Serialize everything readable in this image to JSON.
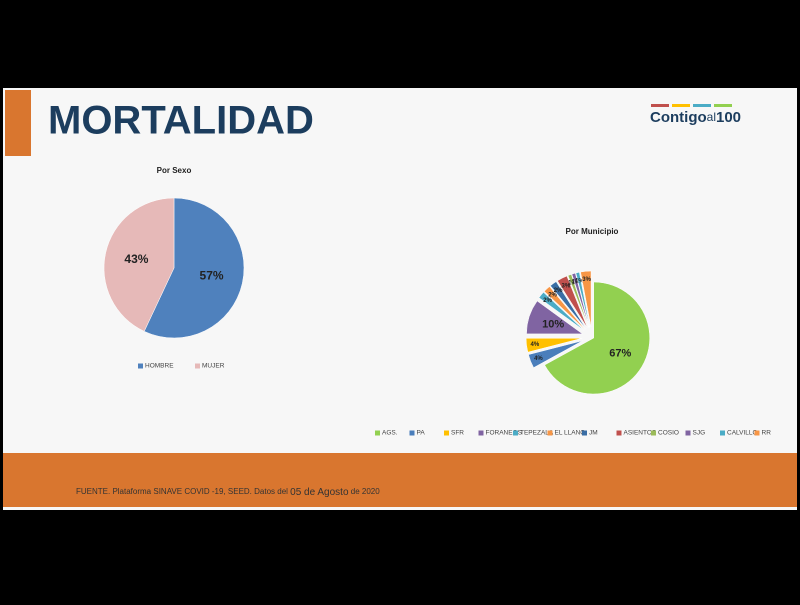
{
  "header": {
    "title": "MORTALIDAD",
    "logo": [
      "Contigo",
      "al",
      "100"
    ]
  },
  "footer": [
    "FUENTE. Plataforma SINAVE COVID -19, SEED. Datos del ",
    "05 de Agosto",
    " de 2020"
  ],
  "chart_data": [
    {
      "type": "pie",
      "title": "Por Sexo",
      "categories": [
        "HOMBRE",
        "MUJER"
      ],
      "values": [
        57,
        43
      ],
      "value_labels": [
        "57%",
        "43%"
      ],
      "colors": [
        "#4f81bd",
        "#e6b9b8"
      ]
    },
    {
      "type": "pie",
      "title": "Por Municipio",
      "exploded": true,
      "categories": [
        "AGS.",
        "PA",
        "SFR",
        "FORANEOS",
        "TEPEZALA",
        "EL LLANO",
        "JM",
        "ASIENTOS",
        "COSIO",
        "SJG",
        "CALVILLO",
        "RR"
      ],
      "values": [
        67,
        4,
        4,
        10,
        2,
        2,
        2,
        3,
        1,
        1,
        1,
        3
      ],
      "value_labels": [
        "67%",
        "4%",
        "4%",
        "10%",
        "2%",
        "2%",
        "2%",
        "3%",
        "1%",
        "1%",
        "1%",
        "3%"
      ],
      "colors": [
        "#92d050",
        "#4a7ebb",
        "#ffc000",
        "#8064a2",
        "#4bacc6",
        "#f79646",
        "#3a6ea5",
        "#c0504d",
        "#9bbb59",
        "#8064a2",
        "#4bacc6",
        "#f79646"
      ]
    }
  ]
}
